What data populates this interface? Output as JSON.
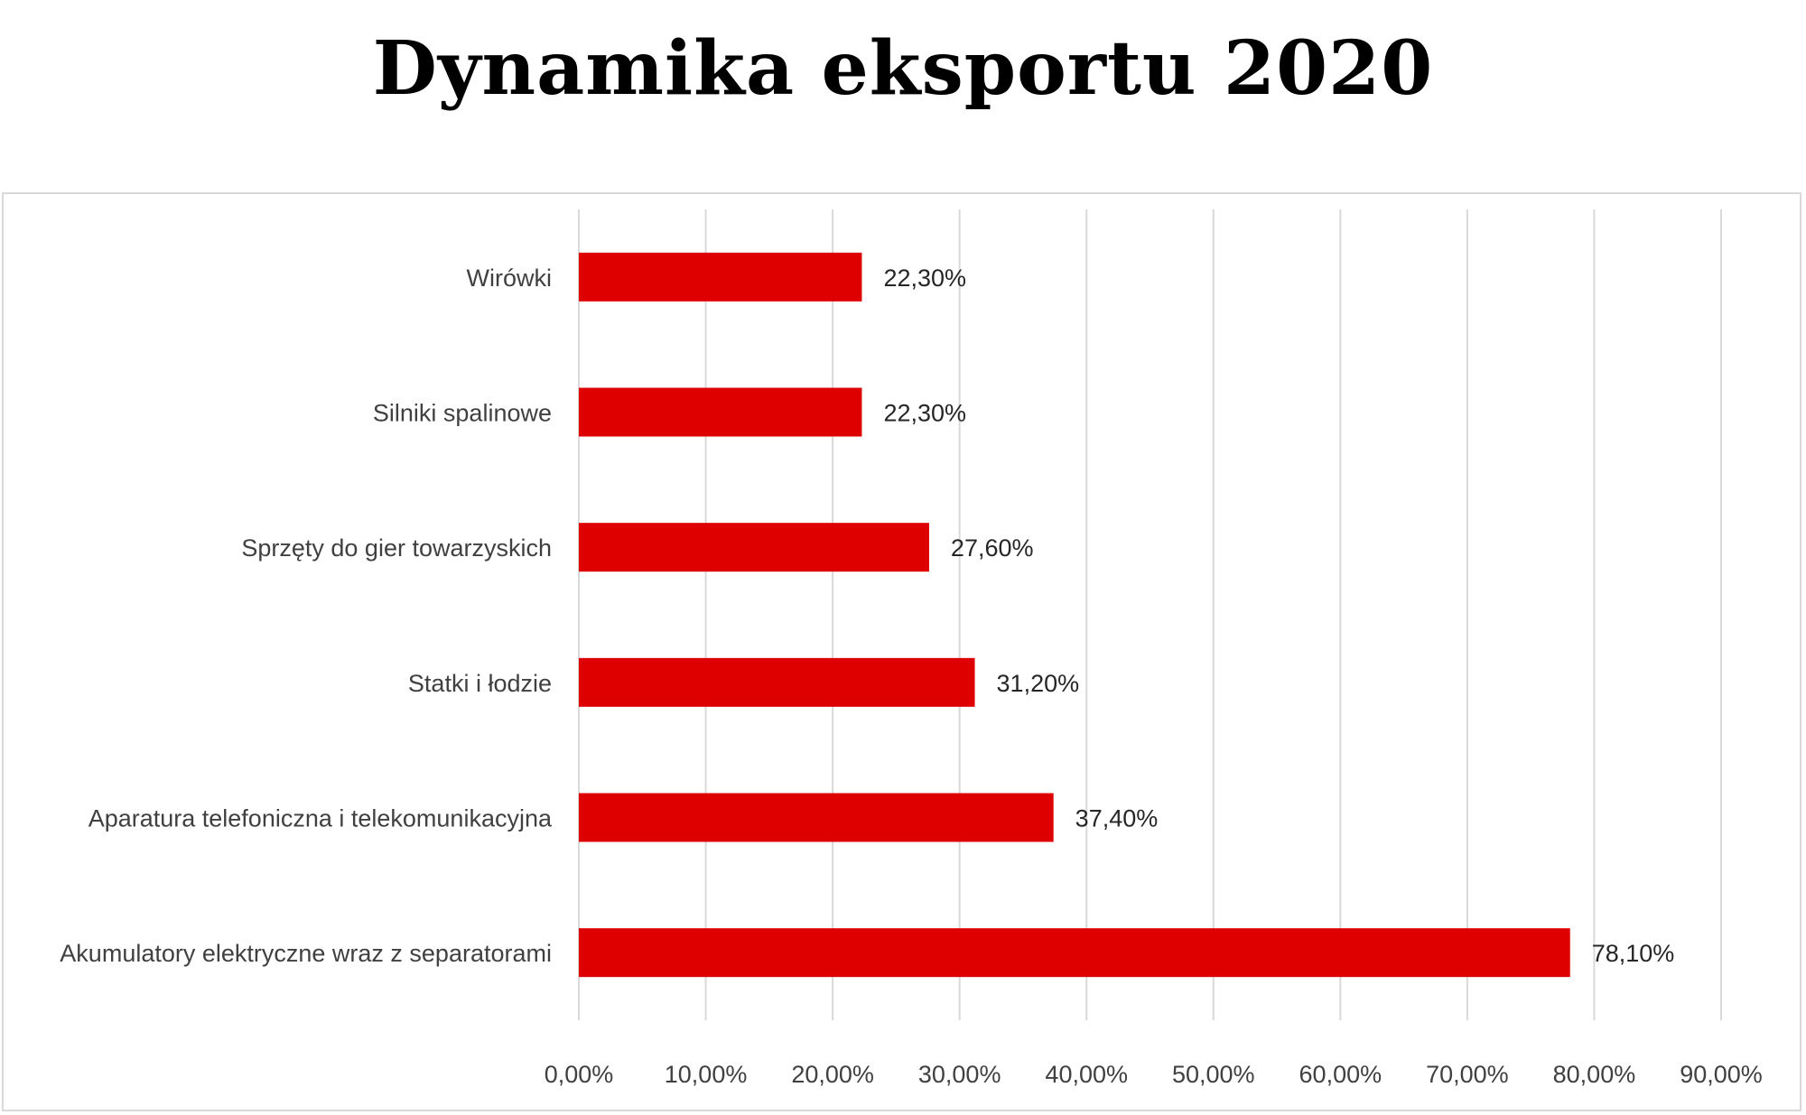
{
  "title": "Dynamika eksportu 2020",
  "colors": {
    "bar": "#DE0000",
    "grid": "#d9d9d9",
    "text": "#404040"
  },
  "chart_data": {
    "type": "bar",
    "orientation": "horizontal",
    "title": "Dynamika eksportu 2020",
    "categories": [
      "Wirówki",
      "Silniki spalinowe",
      "Sprzęty do gier towarzyskich",
      "Statki i łodzie",
      "Aparatura telefoniczna i telekomunikacyjna",
      "Akumulatory elektryczne wraz z separatorami"
    ],
    "values": [
      22.3,
      22.3,
      27.6,
      31.2,
      37.4,
      78.1
    ],
    "data_labels": [
      "22,30%",
      "22,30%",
      "27,60%",
      "31,20%",
      "37,40%",
      "78,10%"
    ],
    "xlim": [
      0,
      90
    ],
    "x_ticks": [
      0,
      10,
      20,
      30,
      40,
      50,
      60,
      70,
      80,
      90
    ],
    "x_tick_labels": [
      "0,00%",
      "10,00%",
      "20,00%",
      "30,00%",
      "40,00%",
      "50,00%",
      "60,00%",
      "70,00%",
      "80,00%",
      "90,00%"
    ],
    "xlabel": "",
    "ylabel": "",
    "grid": true,
    "legend": false
  }
}
